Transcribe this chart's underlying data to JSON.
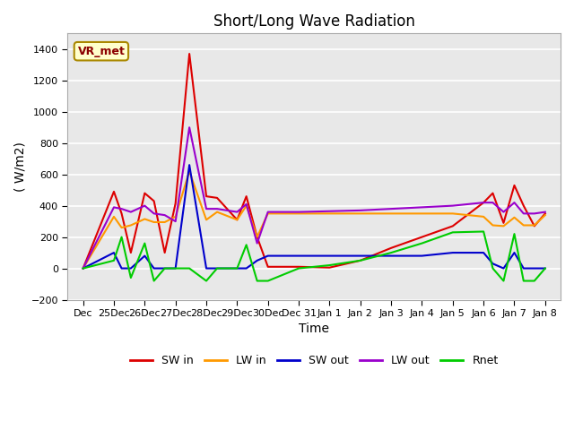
{
  "title": "Short/Long Wave Radiation",
  "xlabel": "Time",
  "ylabel": "( W/m2)",
  "ylim": [
    -200,
    1500
  ],
  "yticks": [
    -200,
    0,
    200,
    400,
    600,
    800,
    1000,
    1200,
    1400
  ],
  "label_annotation": "VR_met",
  "bg_color": "#e8e8e8",
  "fig_color": "#ffffff",
  "tick_labels": [
    "Dec",
    "25Dec",
    "26Dec",
    "27Dec",
    "28Dec",
    "29Dec",
    "30Dec",
    "Dec 31",
    "Jan 1",
    "Jan 2",
    "Jan 3",
    "Jan 4",
    "Jan 5",
    "Jan 6",
    "Jan 7",
    "Jan 8"
  ],
  "SW_in": {
    "color": "#dd0000",
    "label": "SW in",
    "x": [
      0,
      1,
      1.25,
      1.55,
      2,
      2.3,
      2.65,
      3,
      3.45,
      4,
      4.35,
      5,
      5.3,
      5.65,
      6,
      7,
      8,
      9,
      10,
      11,
      12,
      13,
      13.3,
      13.65,
      14,
      14.3,
      14.65,
      15
    ],
    "y": [
      0,
      490,
      350,
      100,
      480,
      430,
      100,
      415,
      1370,
      460,
      450,
      310,
      460,
      200,
      10,
      10,
      5,
      50,
      130,
      200,
      270,
      420,
      480,
      290,
      530,
      400,
      270,
      350
    ]
  },
  "LW_in": {
    "color": "#ff9900",
    "label": "LW in",
    "x": [
      0,
      1,
      1.25,
      1.55,
      2,
      2.3,
      2.65,
      3,
      3.45,
      4,
      4.35,
      5,
      5.3,
      5.65,
      6,
      7,
      8,
      9,
      10,
      11,
      12,
      13,
      13.3,
      13.65,
      14,
      14.3,
      14.65,
      15
    ],
    "y": [
      0,
      330,
      260,
      275,
      315,
      295,
      295,
      330,
      620,
      310,
      360,
      310,
      400,
      200,
      350,
      350,
      350,
      350,
      350,
      350,
      350,
      330,
      275,
      270,
      325,
      275,
      275,
      340
    ]
  },
  "SW_out": {
    "color": "#0000cc",
    "label": "SW out",
    "x": [
      0,
      1,
      1.25,
      1.55,
      2,
      2.3,
      2.65,
      3,
      3.45,
      4,
      4.35,
      5,
      5.3,
      5.65,
      6,
      7,
      8,
      9,
      10,
      11,
      12,
      13,
      13.3,
      13.65,
      14,
      14.3,
      14.65,
      15
    ],
    "y": [
      0,
      100,
      0,
      0,
      80,
      0,
      0,
      0,
      660,
      0,
      0,
      0,
      0,
      50,
      80,
      80,
      80,
      80,
      80,
      80,
      100,
      100,
      30,
      0,
      100,
      0,
      0,
      0
    ]
  },
  "LW_out": {
    "color": "#9900cc",
    "label": "LW out",
    "x": [
      0,
      1,
      1.25,
      1.55,
      2,
      2.3,
      2.65,
      3,
      3.45,
      4,
      4.35,
      5,
      5.3,
      5.65,
      6,
      7,
      8,
      9,
      10,
      11,
      12,
      13,
      13.3,
      13.65,
      14,
      14.3,
      14.65,
      15
    ],
    "y": [
      0,
      390,
      380,
      360,
      400,
      350,
      340,
      300,
      900,
      380,
      380,
      360,
      410,
      160,
      360,
      360,
      365,
      370,
      380,
      390,
      400,
      420,
      420,
      360,
      420,
      350,
      350,
      360
    ]
  },
  "Rnet": {
    "color": "#00cc00",
    "label": "Rnet",
    "x": [
      0,
      1,
      1.25,
      1.55,
      2,
      2.3,
      2.65,
      3,
      3.45,
      4,
      4.35,
      5,
      5.3,
      5.65,
      6,
      7,
      8,
      9,
      10,
      11,
      12,
      13,
      13.3,
      13.65,
      14,
      14.3,
      14.65,
      15
    ],
    "y": [
      0,
      50,
      200,
      -60,
      160,
      -80,
      0,
      0,
      0,
      -80,
      0,
      0,
      150,
      -80,
      -80,
      0,
      20,
      50,
      100,
      160,
      230,
      235,
      0,
      -80,
      220,
      -80,
      -80,
      0
    ]
  }
}
